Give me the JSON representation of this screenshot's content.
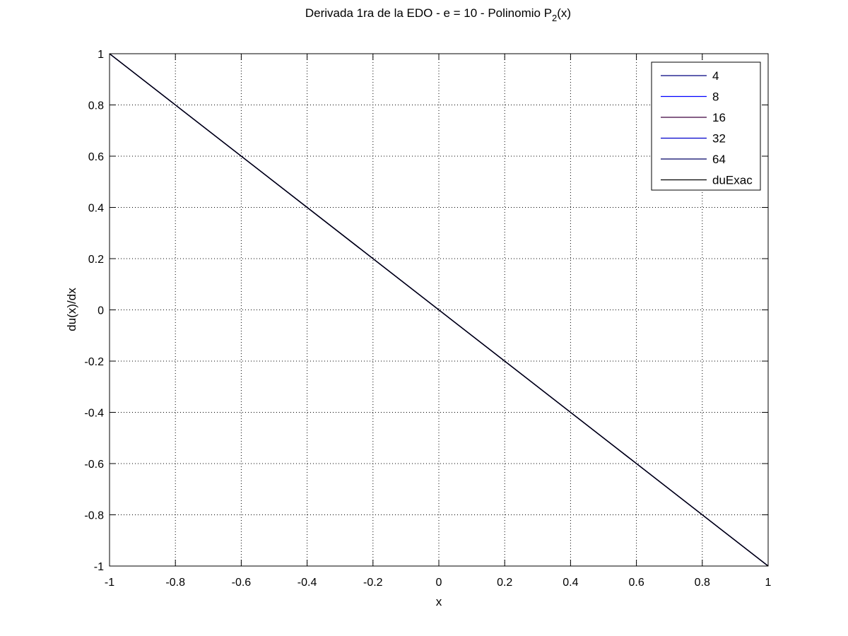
{
  "chart_data": {
    "type": "line",
    "title": {
      "main": "Derivada 1ra de la EDO - e = 10 - Polinomio P",
      "subscript": "2",
      "suffix": "(x)"
    },
    "xlabel": "x",
    "ylabel": "du(x)/dx",
    "xlim": [
      -1,
      1
    ],
    "ylim": [
      -1,
      1
    ],
    "xticks": [
      -1,
      -0.8,
      -0.6,
      -0.4,
      -0.2,
      0,
      0.2,
      0.4,
      0.6,
      0.8,
      1
    ],
    "yticks": [
      -1,
      -0.8,
      -0.6,
      -0.4,
      -0.2,
      0,
      0.2,
      0.4,
      0.6,
      0.8,
      1
    ],
    "xtick_labels": [
      "-1",
      "-0.8",
      "-0.6",
      "-0.4",
      "-0.2",
      "0",
      "0.2",
      "0.4",
      "0.6",
      "0.8",
      "1"
    ],
    "ytick_labels": [
      "-1",
      "-0.8",
      "-0.6",
      "-0.4",
      "-0.2",
      "0",
      "0.2",
      "0.4",
      "0.6",
      "0.8",
      "1"
    ],
    "grid": true,
    "legend_position": "top-right",
    "series": [
      {
        "name": "4",
        "color": "#00007f",
        "x": [
          -1,
          1
        ],
        "y": [
          1,
          -1
        ]
      },
      {
        "name": "8",
        "color": "#0000ff",
        "x": [
          -1,
          1
        ],
        "y": [
          1,
          -1
        ]
      },
      {
        "name": "16",
        "color": "#3f003f",
        "x": [
          -1,
          1
        ],
        "y": [
          1,
          -1
        ]
      },
      {
        "name": "32",
        "color": "#0000cc",
        "x": [
          -1,
          1
        ],
        "y": [
          1,
          -1
        ]
      },
      {
        "name": "64",
        "color": "#000066",
        "x": [
          -1,
          1
        ],
        "y": [
          1,
          -1
        ]
      },
      {
        "name": "duExac",
        "color": "#000000",
        "x": [
          -1,
          1
        ],
        "y": [
          1,
          -1
        ]
      }
    ]
  }
}
